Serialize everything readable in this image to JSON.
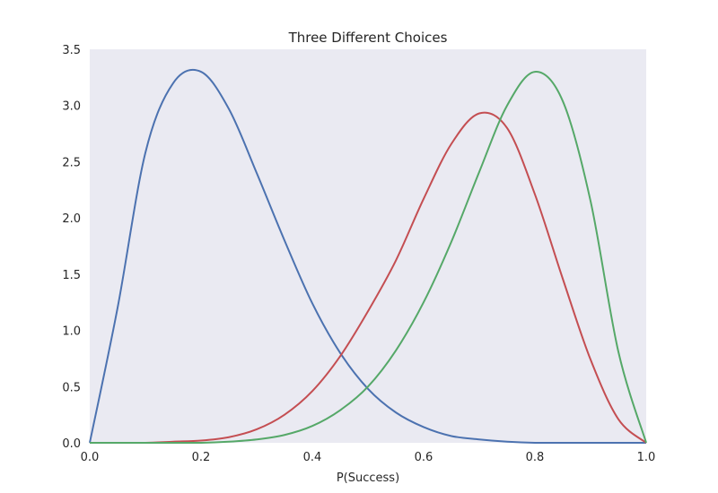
{
  "chart_data": {
    "type": "line",
    "title": "Three Different Choices",
    "xlabel": "P(Success)",
    "ylabel": "",
    "xlim": [
      0.0,
      1.0
    ],
    "ylim": [
      0.0,
      3.5
    ],
    "grid": false,
    "background": "#eaeaf2",
    "x_ticks": [
      "0.0",
      "0.2",
      "0.4",
      "0.6",
      "0.8",
      "1.0"
    ],
    "y_ticks": [
      "0.0",
      "0.5",
      "1.0",
      "1.5",
      "2.0",
      "2.5",
      "3.0",
      "3.5"
    ],
    "x": [
      0.0,
      0.05,
      0.1,
      0.15,
      0.2,
      0.25,
      0.3,
      0.35,
      0.4,
      0.45,
      0.5,
      0.55,
      0.6,
      0.65,
      0.7,
      0.75,
      0.8,
      0.85,
      0.9,
      0.95,
      1.0
    ],
    "series": [
      {
        "color": "#4c72b0",
        "values": [
          0.0,
          1.2,
          2.58,
          3.2,
          3.3,
          2.97,
          2.4,
          1.8,
          1.24,
          0.8,
          0.48,
          0.27,
          0.14,
          0.06,
          0.03,
          0.01,
          0.0,
          0.0,
          0.0,
          0.0,
          0.0
        ]
      },
      {
        "color": "#c44e52",
        "values": [
          0.0,
          0.0,
          0.0,
          0.01,
          0.02,
          0.05,
          0.12,
          0.25,
          0.46,
          0.77,
          1.17,
          1.62,
          2.17,
          2.66,
          2.93,
          2.8,
          2.21,
          1.46,
          0.74,
          0.21,
          0.0
        ]
      },
      {
        "color": "#55a868",
        "values": [
          0.0,
          0.0,
          0.0,
          0.0,
          0.0,
          0.01,
          0.03,
          0.07,
          0.15,
          0.29,
          0.5,
          0.82,
          1.25,
          1.79,
          2.41,
          3.0,
          3.3,
          3.04,
          2.15,
          0.81,
          0.0
        ]
      }
    ]
  }
}
